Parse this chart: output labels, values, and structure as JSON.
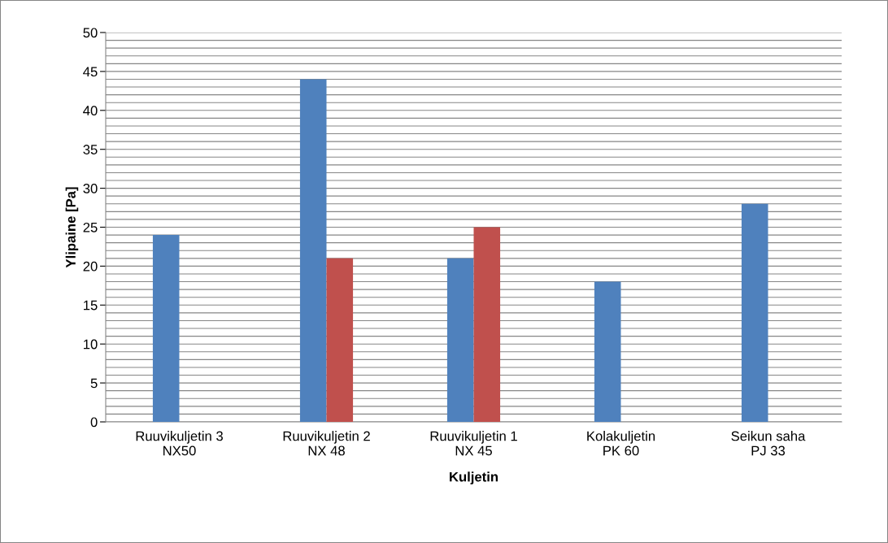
{
  "chart_data": {
    "type": "bar",
    "xlabel": "Kuljetin",
    "ylabel": "Ylipaine [Pa]",
    "categories": [
      "Ruuvikuljetin 3\nNX50",
      "Ruuvikuljetin 2\nNX 48",
      "Ruuvikuljetin 1\nNX 45",
      "Kolakuljetin\nPK 60",
      "Seikun saha\nPJ 33"
    ],
    "series": [
      {
        "color": "#4f81bd",
        "values": [
          24,
          44,
          21,
          18,
          28
        ]
      },
      {
        "color": "#c0504d",
        "values": [
          null,
          21,
          25,
          null,
          null
        ]
      }
    ],
    "ylim": [
      0,
      50
    ],
    "yticks": [
      0,
      {
        "value": 1,
        "label": null
      },
      {
        "value": 2,
        "label": null
      },
      {
        "value": 3,
        "label": null
      },
      {
        "value": 4,
        "label": null
      },
      5,
      {
        "value": 6,
        "label": null
      },
      {
        "value": 7,
        "label": null
      },
      {
        "value": 8,
        "label": null
      },
      {
        "value": 9,
        "label": null
      },
      10,
      {
        "value": 11,
        "label": null
      },
      {
        "value": 12,
        "label": null
      },
      {
        "value": 13,
        "label": null
      },
      {
        "value": 14,
        "label": null
      },
      15,
      {
        "value": 16,
        "label": null
      },
      {
        "value": 17,
        "label": null
      },
      {
        "value": 18,
        "label": null
      },
      {
        "value": 19,
        "label": null
      },
      20,
      {
        "value": 21,
        "label": null
      },
      {
        "value": 22,
        "label": null
      },
      {
        "value": 23,
        "label": null
      },
      {
        "value": 24,
        "label": null
      },
      25,
      {
        "value": 26,
        "label": null
      },
      {
        "value": 27,
        "label": null
      },
      {
        "value": 28,
        "label": null
      },
      {
        "value": 29,
        "label": null
      },
      30,
      {
        "value": 31,
        "label": null
      },
      {
        "value": 32,
        "label": null
      },
      {
        "value": 33,
        "label": null
      },
      {
        "value": 34,
        "label": null
      },
      35,
      {
        "value": 36,
        "label": null
      },
      {
        "value": 37,
        "label": null
      },
      {
        "value": 38,
        "label": null
      },
      {
        "value": 39,
        "label": null
      },
      40,
      {
        "value": 41,
        "label": null
      },
      {
        "value": 42,
        "label": null
      },
      {
        "value": 43,
        "label": null
      },
      {
        "value": 44,
        "label": null
      },
      45,
      {
        "value": 46,
        "label": null
      },
      {
        "value": 47,
        "label": null
      },
      {
        "value": 48,
        "label": null
      },
      {
        "value": 49,
        "label": null
      },
      50
    ],
    "grid": "y",
    "legend": false
  }
}
